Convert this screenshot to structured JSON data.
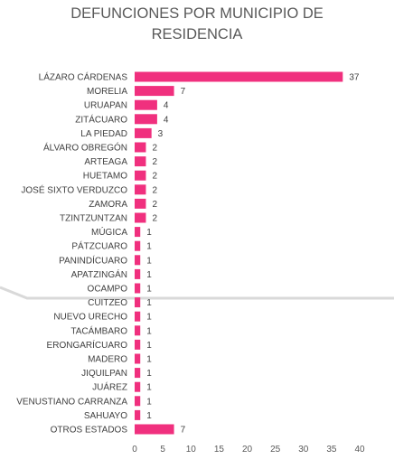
{
  "chart_data": {
    "type": "bar",
    "orientation": "horizontal",
    "title": "DEFUNCIONES POR MUNICIPIO DE RESIDENCIA",
    "title_lines": [
      "DEFUNCIONES POR MUNICIPIO DE",
      "RESIDENCIA"
    ],
    "categories": [
      "LÁZARO CÁRDENAS",
      "MORELIA",
      "URUAPAN",
      "ZITÁCUARO",
      "LA PIEDAD",
      "ÁLVARO OBREGÓN",
      "ARTEAGA",
      "HUETAMO",
      "JOSÉ SIXTO VERDUZCO",
      "ZAMORA",
      "TZINTZUNTZAN",
      "MÚGICA",
      "PÁTZCUARO",
      "PANINDÍCUARO",
      "APATZINGÁN",
      "OCAMPO",
      "CUITZEO",
      "NUEVO URECHO",
      "TACÁMBARO",
      "ERONGARÍCUARO",
      "MADERO",
      "JIQUILPAN",
      "JUÁREZ",
      "VENUSTIANO CARRANZA",
      "SAHUAYO",
      "OTROS ESTADOS"
    ],
    "values": [
      37,
      7,
      4,
      4,
      3,
      2,
      2,
      2,
      2,
      2,
      2,
      1,
      1,
      1,
      1,
      1,
      1,
      1,
      1,
      1,
      1,
      1,
      1,
      1,
      1,
      7
    ],
    "xlim": [
      0,
      40
    ],
    "xticks": [
      0,
      5,
      10,
      15,
      20,
      25,
      30,
      35,
      40
    ],
    "grid": false,
    "legend": "none",
    "data_labels": true,
    "bar_color": "#F0307E",
    "title_color": "#595959",
    "label_color": "#404040",
    "background_line_color": "#D9D9D9"
  }
}
